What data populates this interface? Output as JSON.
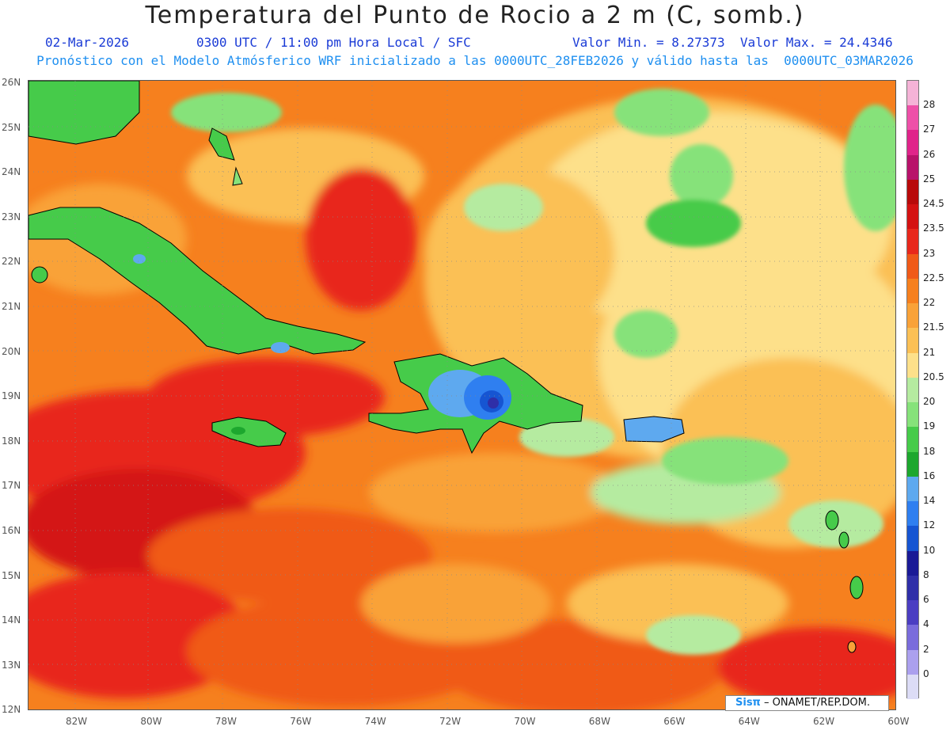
{
  "header": {
    "title": "Temperatura del Punto de Rocio a 2 m (C, somb.)",
    "date": "02-Mar-2026",
    "time": "0300 UTC / 11:00 pm Hora Local / SFC",
    "minmax": "Valor Min. = 8.27373  Valor Max. = 24.4346",
    "model": "Pronóstico con el Modelo Atmósferico WRF inicializado a las 0000UTC_28FEB2026 y válido hasta las  0000UTC_03MAR2026"
  },
  "axes": {
    "lat_labels": [
      "26N",
      "25N",
      "24N",
      "23N",
      "22N",
      "21N",
      "20N",
      "19N",
      "18N",
      "17N",
      "16N",
      "15N",
      "14N",
      "13N",
      "12N"
    ],
    "lon_labels": [
      "82W",
      "80W",
      "78W",
      "76W",
      "74W",
      "72W",
      "70W",
      "68W",
      "66W",
      "64W",
      "62W",
      "60W"
    ]
  },
  "legend": {
    "levels": [
      "28",
      "27",
      "26",
      "25",
      "24.5",
      "23.5",
      "23",
      "22.5",
      "22",
      "21.5",
      "21",
      "20.5",
      "20",
      "19",
      "18",
      "16",
      "14",
      "12",
      "10",
      "8",
      "6",
      "4",
      "2",
      "0"
    ],
    "colors": [
      "#f5b3d7",
      "#ee50a8",
      "#e0248a",
      "#b8126a",
      "#b80a0a",
      "#d41212",
      "#e8281c",
      "#f05a18",
      "#f6801e",
      "#f9a238",
      "#fbc055",
      "#fde08a",
      "#b5eba0",
      "#86e27a",
      "#46cb4a",
      "#1da72e",
      "#5ea9ef",
      "#2f7ff0",
      "#1655d2",
      "#1a1a96",
      "#2f2fa8",
      "#4b3ec2",
      "#7a6cdc",
      "#aba0ee",
      "#dcdcf6"
    ]
  },
  "credit": {
    "sis": "Sisπ",
    "org": " – ONAMET/REP.DOM."
  }
}
